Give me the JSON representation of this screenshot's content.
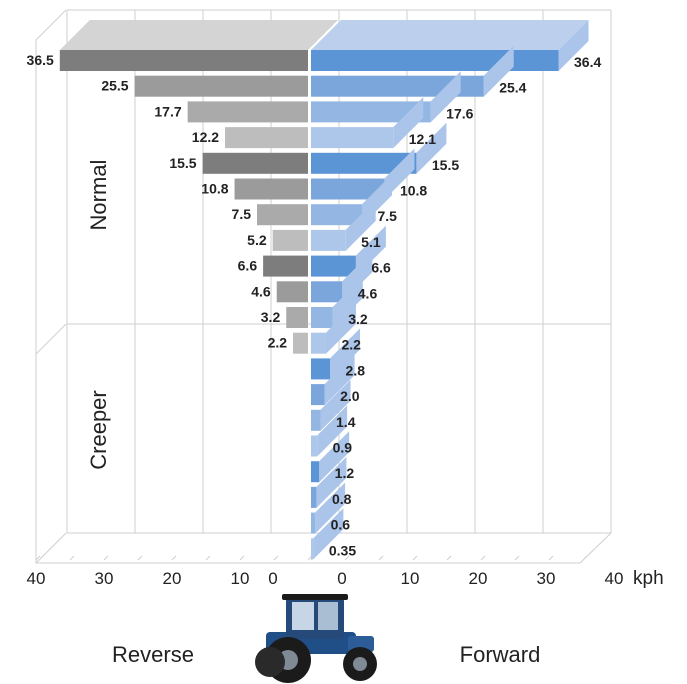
{
  "chart_data": {
    "type": "bar",
    "orientation": "horizontal",
    "style": "3d back-to-back",
    "unit": "kph",
    "x_ticks_reverse": [
      "40",
      "30",
      "20",
      "10",
      "0"
    ],
    "x_ticks_forward": [
      "0",
      "10",
      "20",
      "30",
      "40"
    ],
    "xlim": [
      0,
      40
    ],
    "groups": [
      {
        "label": "Normal",
        "rows": [
          0,
          11
        ]
      },
      {
        "label": "Creeper",
        "rows": [
          12,
          19
        ]
      }
    ],
    "series": [
      {
        "name": "Reverse",
        "color": "#8c8c8c",
        "values": [
          36.5,
          25.5,
          17.7,
          12.2,
          15.5,
          10.8,
          7.5,
          5.2,
          6.6,
          4.6,
          3.2,
          2.2
        ],
        "labels": [
          "36.5",
          "25.5",
          "17.7",
          "12.2",
          "15.5",
          "10.8",
          "7.5",
          "5.2",
          "6.6",
          "4.6",
          "3.2",
          "2.2"
        ]
      },
      {
        "name": "Forward",
        "color": "#5b8fd0",
        "values": [
          36.4,
          25.4,
          17.6,
          12.1,
          15.5,
          10.8,
          7.5,
          5.1,
          6.6,
          4.6,
          3.2,
          2.2,
          2.8,
          2.0,
          1.4,
          0.9,
          1.2,
          0.8,
          0.6,
          0.35
        ],
        "labels": [
          "36.4",
          "25.4",
          "17.6",
          "12.1",
          "15.5",
          "10.8",
          "7.5",
          "5.1",
          "6.6",
          "4.6",
          "3.2",
          "2.2",
          "2.8",
          "2.0",
          "1.4",
          "0.9",
          "1.2",
          "0.8",
          "0.6",
          "0.35"
        ]
      }
    ],
    "reverse_shades": [
      "#7d7d7d",
      "#9b9b9b",
      "#aaaaaa",
      "#bdbdbd"
    ],
    "forward_shades": [
      "#5b95d6",
      "#7ba6dc",
      "#93b6e2",
      "#adc7ea"
    ],
    "grid": true
  },
  "footer": {
    "reverse_label": "Reverse",
    "forward_label": "Forward",
    "image": "tractor-icon"
  }
}
